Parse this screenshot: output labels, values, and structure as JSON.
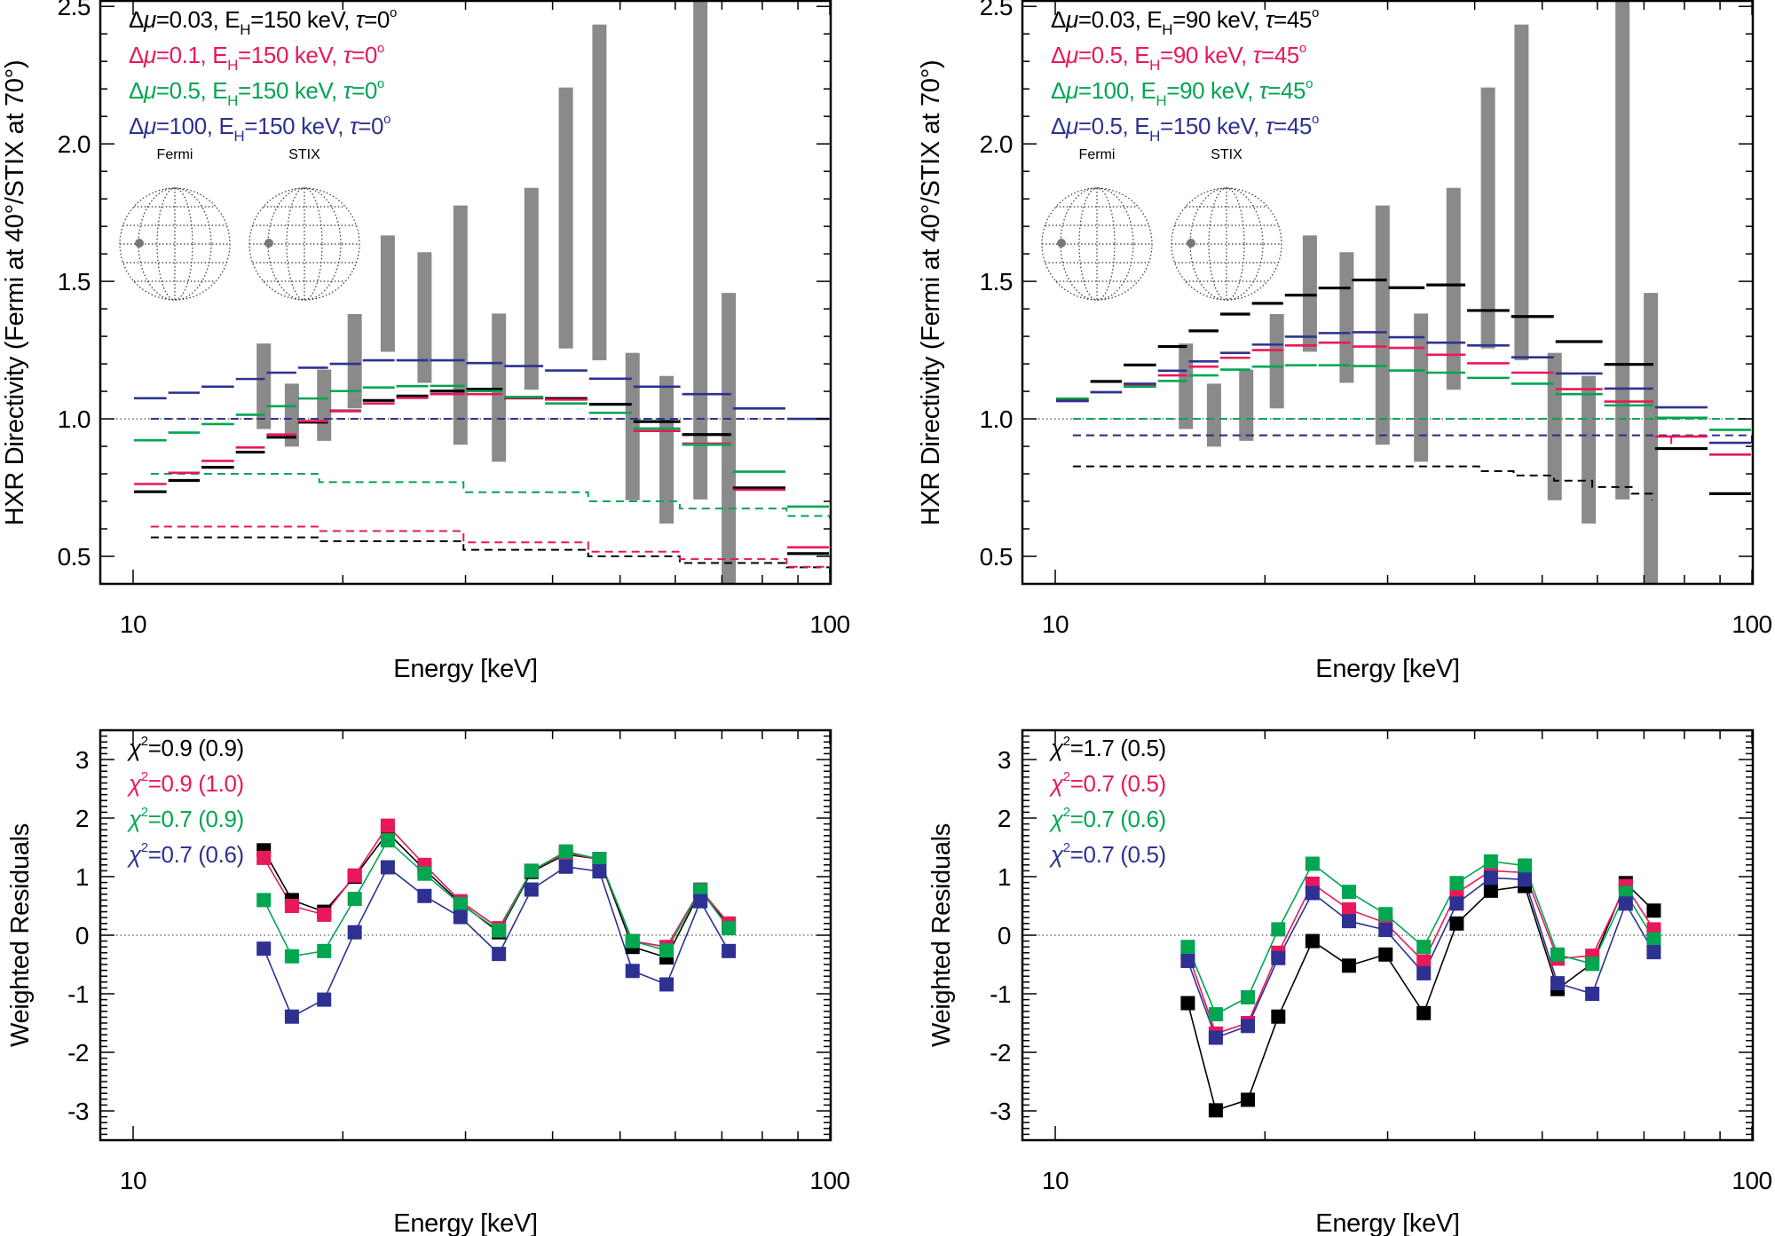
{
  "colors": {
    "series": [
      "#000000",
      "#e8185a",
      "#00a650",
      "#2e3192"
    ],
    "observed_bar": "#8a8a8a",
    "frame": "#000000",
    "reference_line": "#555555",
    "globe": "#333333",
    "globe_dot": "#777777"
  },
  "chart_data": [
    {
      "type": "line",
      "style": "step model curves with observed range bars",
      "xlabel": "Energy [keV]",
      "ylabel": "HXR Directivity (Fermi at 40°/STIX at 70°)",
      "xscale": "log",
      "xlim": [
        10,
        100
      ],
      "ylim": [
        0.4,
        2.52
      ],
      "xtick_labels": [
        "10",
        "100"
      ],
      "ytick_labels": [
        "0.5",
        "1.0",
        "1.5",
        "2.0",
        "2.5"
      ],
      "reference_line": 1.0,
      "legend_placement": "top-left",
      "inset_labels": [
        "Fermi",
        "STIX"
      ],
      "legend": [
        [
          {
            "t": "Δ"
          },
          {
            "t": "μ",
            "i": true
          },
          {
            "t": "=0.03, E"
          },
          {
            "t": "H",
            "sub": true
          },
          {
            "t": "=150 keV, "
          },
          {
            "t": "τ",
            "i": true
          },
          {
            "t": "=0"
          },
          {
            "t": "o",
            "sup": true
          }
        ],
        [
          {
            "t": "Δ"
          },
          {
            "t": "μ",
            "i": true
          },
          {
            "t": "=0.1, E"
          },
          {
            "t": "H",
            "sub": true
          },
          {
            "t": "=150 keV, "
          },
          {
            "t": "τ",
            "i": true
          },
          {
            "t": "=0"
          },
          {
            "t": "o",
            "sup": true
          }
        ],
        [
          {
            "t": "Δ"
          },
          {
            "t": "μ",
            "i": true
          },
          {
            "t": "=0.5, E"
          },
          {
            "t": "H",
            "sub": true
          },
          {
            "t": "=150 keV, "
          },
          {
            "t": "τ",
            "i": true
          },
          {
            "t": "=0"
          },
          {
            "t": "o",
            "sup": true
          }
        ],
        [
          {
            "t": "Δ"
          },
          {
            "t": "μ",
            "i": true
          },
          {
            "t": "=100, E"
          },
          {
            "t": "H",
            "sub": true
          },
          {
            "t": "=150 keV, "
          },
          {
            "t": "τ",
            "i": true
          },
          {
            "t": "=0"
          },
          {
            "t": "o",
            "sup": true
          }
        ]
      ],
      "bin_edges": [
        10,
        11.2,
        12.5,
        14,
        15.5,
        17.2,
        19.1,
        21.3,
        23.8,
        26.6,
        30,
        34,
        38.9,
        45,
        52.1,
        61.2,
        72.4,
        86.6,
        100
      ],
      "series": [
        {
          "model": [
            0.735,
            0.776,
            0.824,
            0.879,
            0.933,
            0.988,
            1.029,
            1.067,
            1.083,
            1.101,
            1.108,
            1.076,
            1.074,
            1.053,
            0.99,
            0.943,
            0.749,
            0.51
          ],
          "dashed": {
            "x": [
              10.6,
              18.5,
              29.8,
              45,
              60.9,
              86.7,
              100
            ],
            "y": [
              0.569,
              0.555,
              0.524,
              0.5,
              0.476,
              0.46,
              0.438
            ]
          }
        },
        {
          "model": [
            0.763,
            0.804,
            0.847,
            0.896,
            0.943,
            0.992,
            1.029,
            1.056,
            1.076,
            1.09,
            1.09,
            1.076,
            1.07,
            1.022,
            0.956,
            0.91,
            0.742,
            0.533
          ],
          "dashed": {
            "x": [
              10.6,
              18.5,
              29.8,
              45,
              60.9,
              86.7,
              100
            ],
            "y": [
              0.608,
              0.592,
              0.551,
              0.517,
              0.49,
              0.462,
              0.44
            ]
          }
        },
        {
          "model": [
            0.922,
            0.95,
            0.981,
            1.015,
            1.046,
            1.074,
            1.101,
            1.114,
            1.119,
            1.12,
            1.101,
            1.08,
            1.056,
            1.022,
            0.965,
            0.906,
            0.808,
            0.681
          ],
          "dashed": {
            "x": [
              10.6,
              18.5,
              29.8,
              45,
              60.9,
              86.7,
              100
            ],
            "y": [
              0.8,
              0.77,
              0.733,
              0.7,
              0.674,
              0.647,
              0.637
            ]
          }
        },
        {
          "model": [
            1.075,
            1.095,
            1.117,
            1.145,
            1.168,
            1.186,
            1.2,
            1.213,
            1.213,
            1.213,
            1.203,
            1.192,
            1.176,
            1.146,
            1.117,
            1.09,
            1.038,
            1.0
          ],
          "dashed": {
            "x": [
              10.6,
              100
            ],
            "y": [
              1.0,
              1.0
            ]
          }
        }
      ],
      "observed": {
        "x": [
          15.4,
          16.9,
          18.8,
          20.8,
          23.2,
          26.2,
          29.5,
          33.5,
          37.3,
          41.8,
          46.7,
          52.1,
          58.3,
          65.2,
          71.6
        ],
        "low": [
          0.963,
          0.899,
          0.92,
          1.038,
          1.244,
          1.131,
          0.906,
          0.844,
          1.106,
          1.256,
          1.213,
          0.704,
          0.619,
          0.707,
          0.39
        ],
        "high": [
          1.274,
          1.128,
          1.179,
          1.381,
          1.667,
          1.606,
          1.776,
          1.383,
          1.84,
          2.205,
          2.434,
          1.24,
          1.156,
          2.6,
          1.458
        ]
      }
    },
    {
      "type": "line",
      "style": "step model curves with observed range bars",
      "xlabel": "Energy [keV]",
      "ylabel": "HXR Directivity (Fermi at 40°/STIX at 70°)",
      "xscale": "log",
      "xlim": [
        10,
        100
      ],
      "ylim": [
        0.4,
        2.52
      ],
      "xtick_labels": [
        "10",
        "100"
      ],
      "ytick_labels": [
        "0.5",
        "1.0",
        "1.5",
        "2.0",
        "2.5"
      ],
      "reference_line": 1.0,
      "legend_placement": "top-left",
      "inset_labels": [
        "Fermi",
        "STIX"
      ],
      "legend": [
        [
          {
            "t": "Δ"
          },
          {
            "t": "μ",
            "i": true
          },
          {
            "t": "=0.03, E"
          },
          {
            "t": "H",
            "sub": true
          },
          {
            "t": "=90 keV, "
          },
          {
            "t": "τ",
            "i": true
          },
          {
            "t": "=45"
          },
          {
            "t": "o",
            "sup": true
          }
        ],
        [
          {
            "t": "Δ"
          },
          {
            "t": "μ",
            "i": true
          },
          {
            "t": "=0.5, E"
          },
          {
            "t": "H",
            "sub": true
          },
          {
            "t": "=90 keV, "
          },
          {
            "t": "τ",
            "i": true
          },
          {
            "t": "=45"
          },
          {
            "t": "o",
            "sup": true
          }
        ],
        [
          {
            "t": "Δ"
          },
          {
            "t": "μ",
            "i": true
          },
          {
            "t": "=100, E"
          },
          {
            "t": "H",
            "sub": true
          },
          {
            "t": "=90 keV, "
          },
          {
            "t": "τ",
            "i": true
          },
          {
            "t": "=45"
          },
          {
            "t": "o",
            "sup": true
          }
        ],
        [
          {
            "t": "Δ"
          },
          {
            "t": "μ",
            "i": true
          },
          {
            "t": "=0.5, E"
          },
          {
            "t": "H",
            "sub": true
          },
          {
            "t": "=150 keV, "
          },
          {
            "t": "τ",
            "i": true
          },
          {
            "t": "=45"
          },
          {
            "t": "o",
            "sup": true
          }
        ]
      ],
      "bin_edges": [
        10,
        11.2,
        12.5,
        14,
        15.5,
        17.2,
        19.1,
        21.3,
        23.8,
        26.6,
        30,
        34,
        38.9,
        45,
        52.1,
        61.2,
        72.4,
        86.6,
        100
      ],
      "series": [
        {
          "model": [
            1.067,
            1.136,
            1.196,
            1.263,
            1.32,
            1.381,
            1.42,
            1.45,
            1.476,
            1.505,
            1.477,
            1.487,
            1.394,
            1.372,
            1.281,
            1.198,
            0.892,
            0.728
          ],
          "dashed": {
            "x": [
              10.6,
              40.6,
              45.5,
              52,
              59,
              67.2,
              71.9
            ],
            "y": [
              0.827,
              0.81,
              0.794,
              0.775,
              0.752,
              0.728,
              0.704
            ]
          }
        },
        {
          "model": [
            1.065,
            1.097,
            1.124,
            1.158,
            1.19,
            1.222,
            1.25,
            1.267,
            1.277,
            1.263,
            1.258,
            1.233,
            1.202,
            1.168,
            1.108,
            1.063,
            0.936,
            0.87
          ],
          "dashed": {
            "x": [
              10.6,
              76.6
            ],
            "y": [
              0.94,
              0.9
            ]
          }
        },
        {
          "model": [
            1.074,
            1.097,
            1.117,
            1.138,
            1.158,
            1.179,
            1.19,
            1.195,
            1.195,
            1.192,
            1.176,
            1.168,
            1.149,
            1.128,
            1.09,
            1.049,
            1.004,
            0.96
          ],
          "dashed": {
            "x": [
              10.6,
              100
            ],
            "y": [
              1.0,
              1.0
            ]
          }
        },
        {
          "model": [
            1.065,
            1.097,
            1.128,
            1.175,
            1.209,
            1.24,
            1.27,
            1.299,
            1.312,
            1.315,
            1.297,
            1.277,
            1.267,
            1.224,
            1.165,
            1.11,
            1.042,
            0.913
          ],
          "dashed": {
            "x": [
              10.6,
              100
            ],
            "y": [
              0.94,
              0.89
            ]
          }
        }
      ],
      "observed": {
        "x": [
          15.4,
          16.9,
          18.8,
          20.8,
          23.2,
          26.2,
          29.5,
          33.5,
          37.3,
          41.8,
          46.7,
          52.1,
          58.3,
          65.2,
          71.6
        ],
        "low": [
          0.963,
          0.899,
          0.92,
          1.038,
          1.244,
          1.131,
          0.906,
          0.844,
          1.106,
          1.256,
          1.213,
          0.704,
          0.619,
          0.707,
          0.39
        ],
        "high": [
          1.274,
          1.128,
          1.179,
          1.381,
          1.667,
          1.606,
          1.776,
          1.383,
          1.84,
          2.205,
          2.434,
          1.24,
          1.156,
          2.6,
          1.458
        ]
      }
    },
    {
      "type": "scatter",
      "style": "square markers joined by lines",
      "xlabel": "Energy [keV]",
      "ylabel": "Weighted Residuals",
      "xscale": "log",
      "xlim": [
        10,
        100
      ],
      "ylim": [
        -3.5,
        3.5
      ],
      "xtick_labels": [
        "10",
        "100"
      ],
      "ytick_labels": [
        "-3",
        "-2",
        "-1",
        "0",
        "1",
        "2",
        "3"
      ],
      "reference_line": 0,
      "legend_placement": "top-left",
      "legend": [
        [
          {
            "t": "χ",
            "i": true
          },
          {
            "t": "2",
            "sup": true
          },
          {
            "t": "=0.9 (0.9)"
          }
        ],
        [
          {
            "t": "χ",
            "i": true
          },
          {
            "t": "2",
            "sup": true
          },
          {
            "t": "=0.9 (1.0)"
          }
        ],
        [
          {
            "t": "χ",
            "i": true
          },
          {
            "t": "2",
            "sup": true
          },
          {
            "t": "=0.7 (0.9)"
          }
        ],
        [
          {
            "t": "χ",
            "i": true
          },
          {
            "t": "2",
            "sup": true
          },
          {
            "t": "=0.7 (0.6)"
          }
        ]
      ],
      "x": [
        15.4,
        16.9,
        18.8,
        20.8,
        23.2,
        26.2,
        29.5,
        33.5,
        37.3,
        41.8,
        46.7,
        52.1,
        58.3,
        65.2,
        71.6
      ],
      "series": [
        {
          "values": [
            1.45,
            0.6,
            0.4,
            1.0,
            1.75,
            1.12,
            0.55,
            0.05,
            1.08,
            1.38,
            1.3,
            -0.2,
            -0.38,
            0.75,
            0.18
          ]
        },
        {
          "values": [
            1.32,
            0.5,
            0.35,
            1.02,
            1.87,
            1.2,
            0.58,
            0.12,
            1.1,
            1.4,
            1.3,
            -0.1,
            -0.2,
            0.78,
            0.2
          ]
        },
        {
          "values": [
            0.6,
            -0.36,
            -0.27,
            0.62,
            1.62,
            1.05,
            0.53,
            0.08,
            1.1,
            1.43,
            1.3,
            -0.1,
            -0.26,
            0.77,
            0.12
          ]
        },
        {
          "values": [
            -0.23,
            -1.39,
            -1.1,
            0.05,
            1.16,
            0.67,
            0.31,
            -0.32,
            0.78,
            1.17,
            1.09,
            -0.61,
            -0.84,
            0.58,
            -0.27
          ]
        }
      ]
    },
    {
      "type": "scatter",
      "style": "square markers joined by lines",
      "xlabel": "Energy [keV]",
      "ylabel": "Weighted Residuals",
      "xscale": "log",
      "xlim": [
        10,
        100
      ],
      "ylim": [
        -3.5,
        3.5
      ],
      "xtick_labels": [
        "10",
        "100"
      ],
      "ytick_labels": [
        "-3",
        "-2",
        "-1",
        "0",
        "1",
        "2",
        "3"
      ],
      "reference_line": 0,
      "legend_placement": "top-left",
      "legend": [
        [
          {
            "t": "χ",
            "i": true
          },
          {
            "t": "2",
            "sup": true
          },
          {
            "t": "=1.7 (0.5)"
          }
        ],
        [
          {
            "t": "χ",
            "i": true
          },
          {
            "t": "2",
            "sup": true
          },
          {
            "t": "=0.7 (0.5)"
          }
        ],
        [
          {
            "t": "χ",
            "i": true
          },
          {
            "t": "2",
            "sup": true
          },
          {
            "t": "=0.7 (0.6)"
          }
        ],
        [
          {
            "t": "χ",
            "i": true
          },
          {
            "t": "2",
            "sup": true
          },
          {
            "t": "=0.7 (0.5)"
          }
        ]
      ],
      "x": [
        15.5,
        17,
        18.9,
        20.9,
        23.4,
        26.4,
        29.8,
        33.8,
        37.7,
        42.2,
        47.2,
        52.6,
        59,
        65.9,
        72.3
      ],
      "series": [
        {
          "values": [
            -1.16,
            -2.99,
            -2.81,
            -1.39,
            -0.1,
            -0.52,
            -0.33,
            -1.33,
            0.2,
            0.76,
            0.84,
            -0.92,
            -0.48,
            0.89,
            0.42
          ]
        },
        {
          "values": [
            -0.3,
            -1.68,
            -1.5,
            -0.3,
            0.88,
            0.44,
            0.21,
            -0.45,
            0.72,
            1.1,
            1.07,
            -0.4,
            -0.35,
            0.84,
            0.1
          ]
        },
        {
          "values": [
            -0.2,
            -1.35,
            -1.06,
            0.1,
            1.22,
            0.74,
            0.36,
            -0.2,
            0.89,
            1.26,
            1.19,
            -0.33,
            -0.49,
            0.72,
            -0.07
          ]
        },
        {
          "values": [
            -0.44,
            -1.75,
            -1.55,
            -0.39,
            0.72,
            0.24,
            0.09,
            -0.65,
            0.54,
            0.98,
            0.95,
            -0.82,
            -1.0,
            0.54,
            -0.29
          ]
        }
      ]
    }
  ]
}
